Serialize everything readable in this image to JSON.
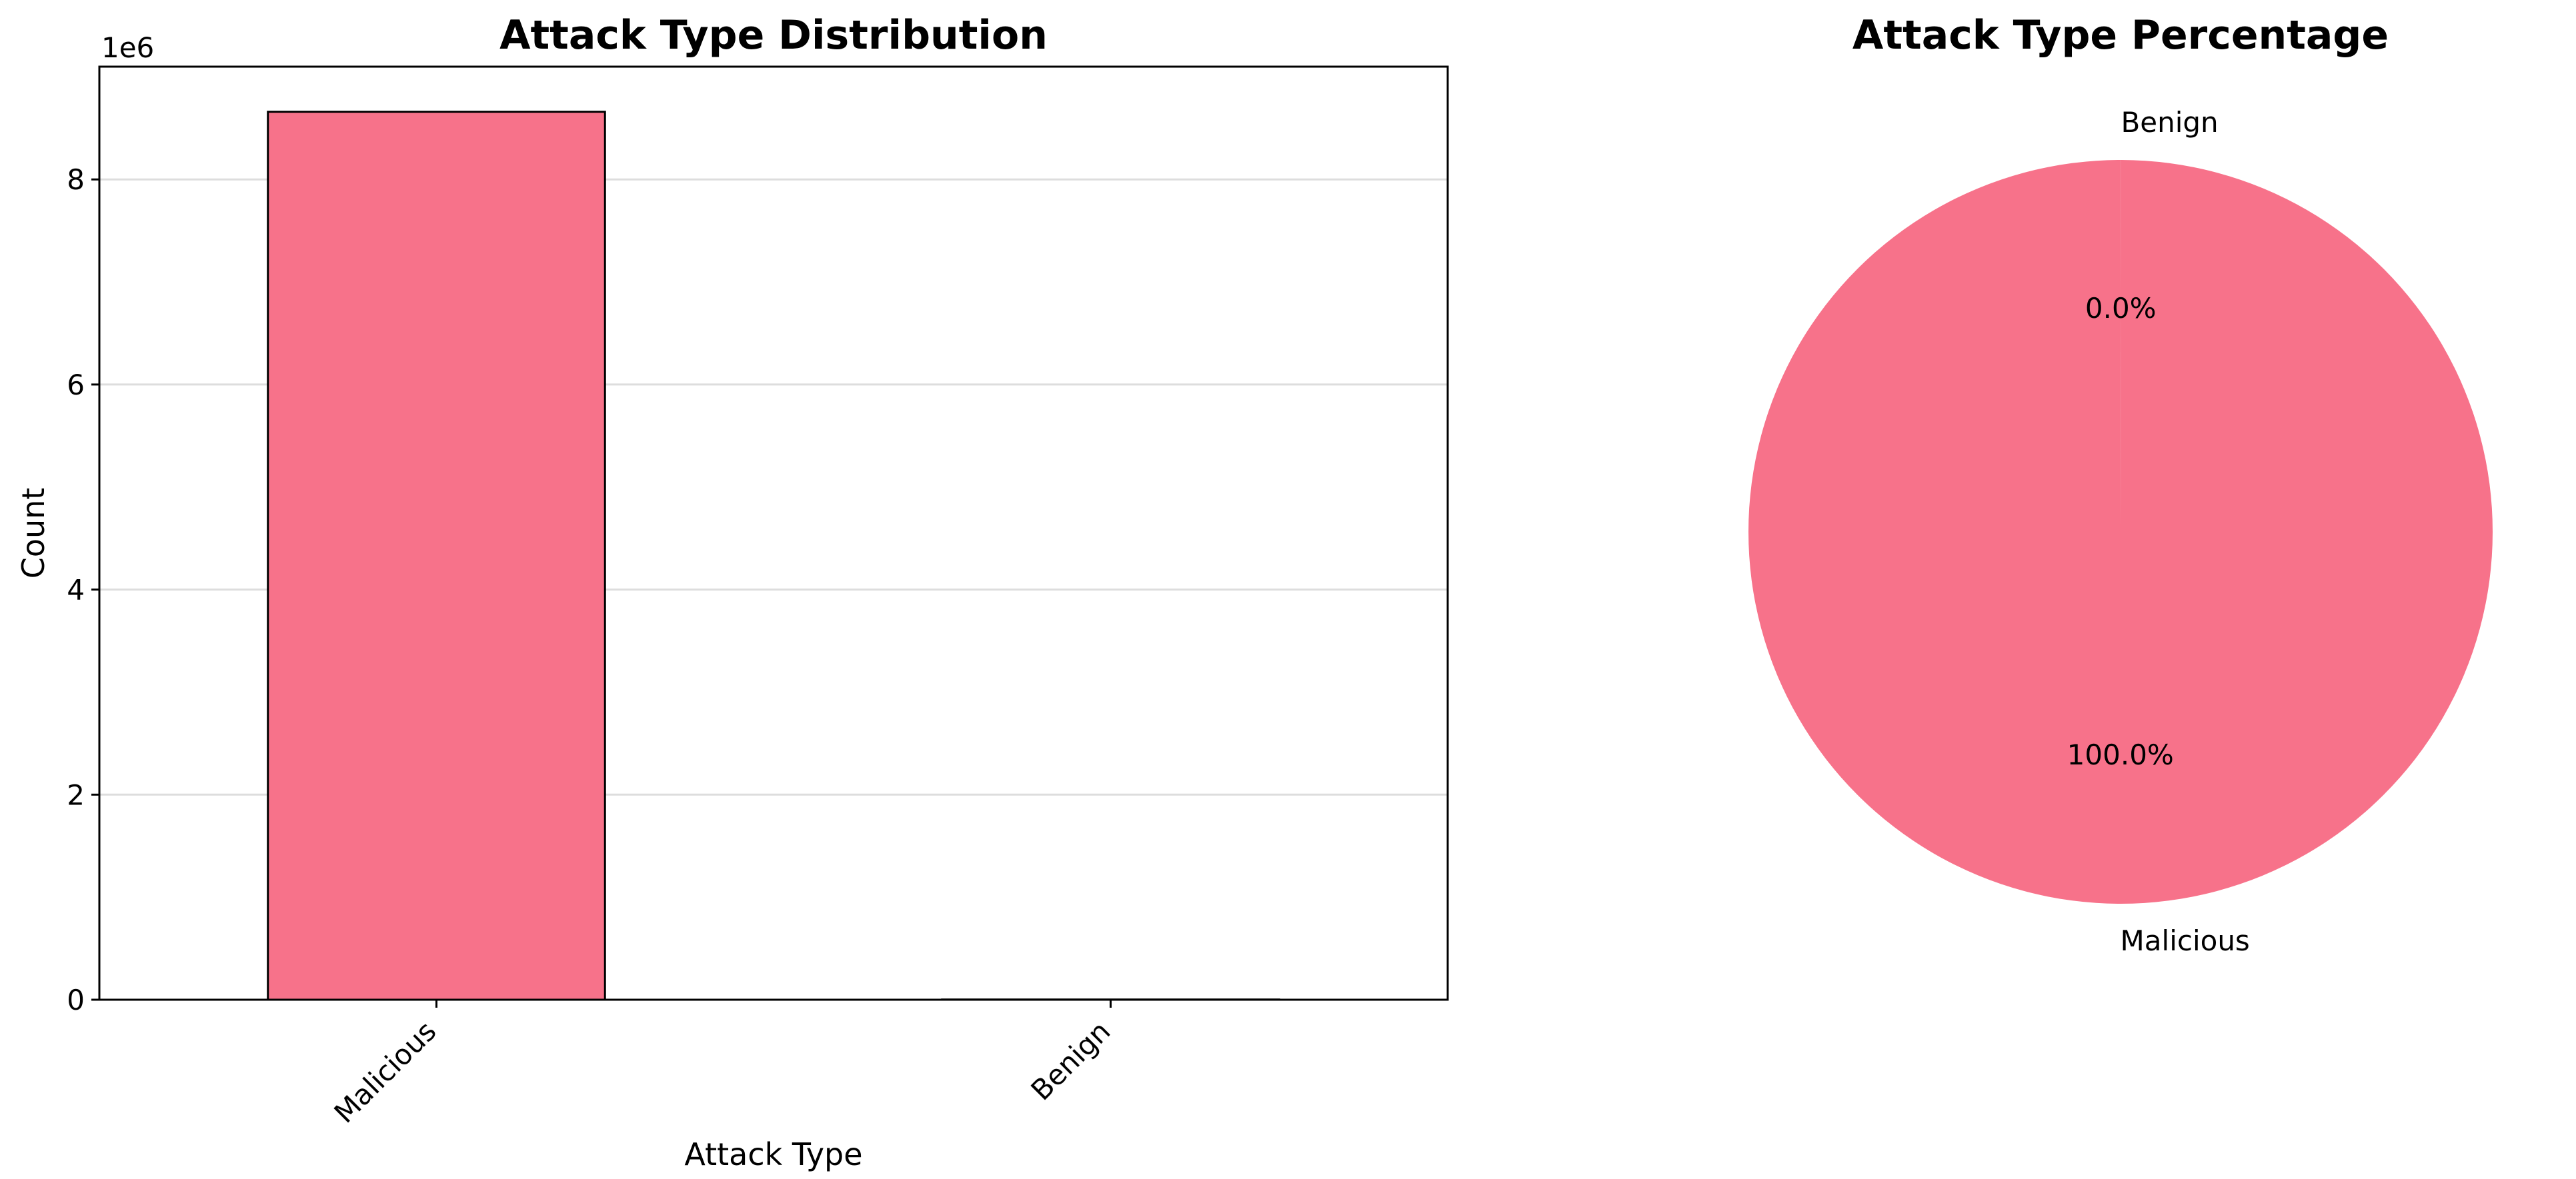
{
  "chart_data": [
    {
      "type": "bar",
      "title": "Attack Type Distribution",
      "xlabel": "Attack Type",
      "ylabel": "Count",
      "categories": [
        "Malicious",
        "Benign"
      ],
      "values": [
        8660000,
        2000
      ],
      "ylim": [
        0,
        9100000
      ],
      "yticks": [
        0,
        2000000,
        4000000,
        6000000,
        8000000
      ],
      "ytick_labels": [
        "0",
        "2",
        "4",
        "6",
        "8"
      ],
      "offset_text": "1e6",
      "grid": "y",
      "bar_color": "#f7728a",
      "edge_color": "#000000"
    },
    {
      "type": "pie",
      "title": "Attack Type Percentage",
      "labels": [
        "Malicious",
        "Benign"
      ],
      "values": [
        8660000,
        2000
      ],
      "autopct": [
        "100.0%",
        "0.0%"
      ],
      "start_angle_deg": 90,
      "colors": [
        "#f7728a",
        "#f7728a"
      ]
    }
  ]
}
